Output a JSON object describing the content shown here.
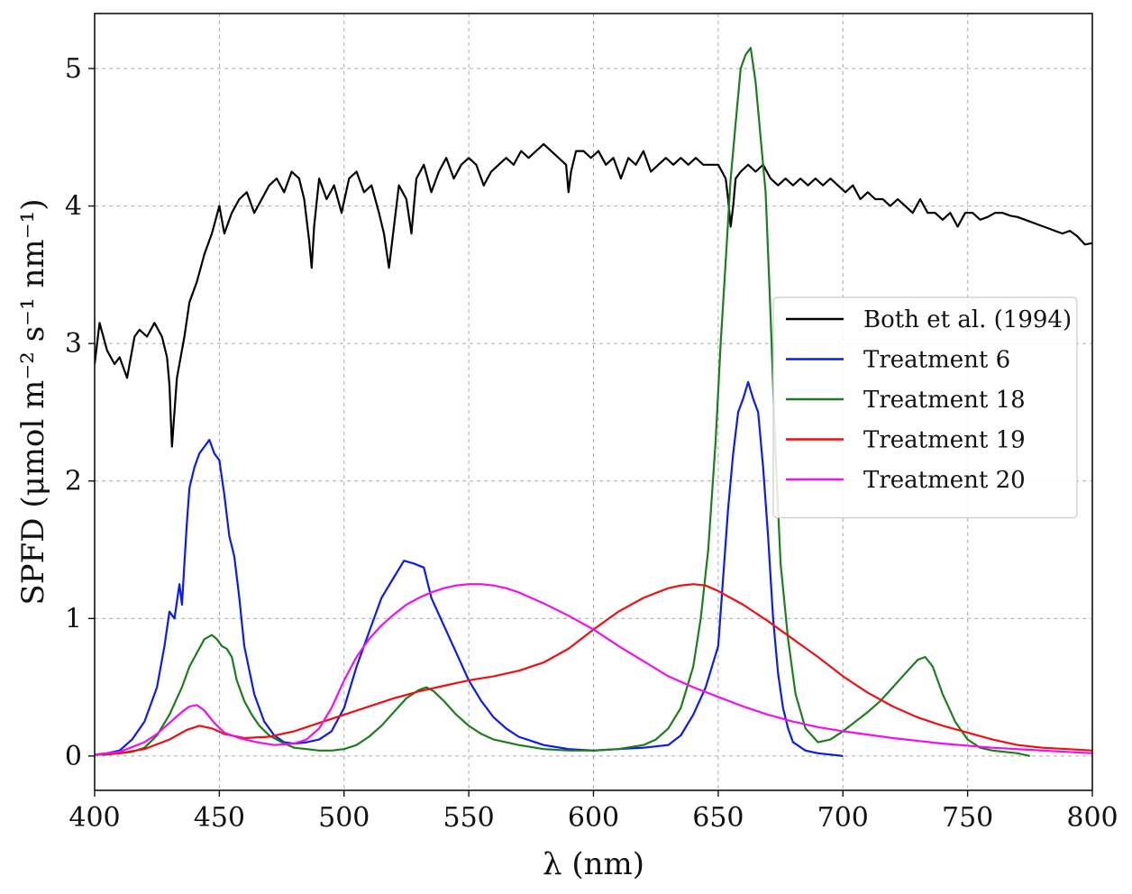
{
  "chart_data": {
    "type": "line",
    "title": "",
    "xlabel": "λ (nm)",
    "ylabel": "SPFD (μmol m⁻² s⁻¹ nm⁻¹)",
    "xlim": [
      400,
      800
    ],
    "ylim": [
      -0.25,
      5.4
    ],
    "xticks": [
      400,
      450,
      500,
      550,
      600,
      650,
      700,
      750,
      800
    ],
    "yticks": [
      0,
      1,
      2,
      3,
      4,
      5
    ],
    "grid": true,
    "legend_position": "center-right",
    "series": [
      {
        "name": "Both et al. (1994)",
        "color": "#000000",
        "x": [
          400,
          402,
          405,
          408,
          410,
          413,
          416,
          418,
          421,
          424,
          427,
          429,
          430,
          431,
          433,
          436,
          438,
          441,
          444,
          447,
          450,
          452,
          455,
          458,
          461,
          464,
          467,
          470,
          473,
          476,
          479,
          482,
          484,
          486,
          487,
          488,
          490,
          493,
          496,
          499,
          502,
          505,
          508,
          511,
          514,
          516,
          518,
          520,
          522,
          525,
          527,
          529,
          532,
          535,
          538,
          541,
          544,
          547,
          550,
          553,
          556,
          559,
          562,
          565,
          568,
          571,
          574,
          577,
          580,
          583,
          586,
          589,
          590,
          591,
          593,
          596,
          599,
          602,
          605,
          608,
          611,
          614,
          617,
          620,
          623,
          626,
          629,
          632,
          635,
          638,
          641,
          644,
          647,
          650,
          653,
          654,
          655,
          656,
          657,
          659,
          662,
          665,
          668,
          671,
          674,
          677,
          680,
          683,
          686,
          689,
          692,
          695,
          698,
          701,
          704,
          707,
          710,
          713,
          716,
          719,
          722,
          725,
          728,
          731,
          734,
          737,
          740,
          743,
          746,
          749,
          752,
          755,
          758,
          761,
          764,
          767,
          770,
          773,
          776,
          779,
          782,
          785,
          788,
          791,
          794,
          797,
          800
        ],
        "values": [
          2.85,
          3.15,
          2.95,
          2.85,
          2.9,
          2.75,
          3.05,
          3.1,
          3.05,
          3.15,
          3.05,
          2.9,
          2.7,
          2.25,
          2.75,
          3.05,
          3.3,
          3.45,
          3.65,
          3.8,
          4.0,
          3.8,
          3.95,
          4.05,
          4.1,
          3.95,
          4.05,
          4.15,
          4.2,
          4.1,
          4.25,
          4.2,
          4.05,
          3.75,
          3.55,
          3.85,
          4.2,
          4.05,
          4.15,
          3.95,
          4.2,
          4.25,
          4.1,
          4.15,
          3.95,
          3.8,
          3.55,
          3.85,
          4.15,
          4.05,
          3.8,
          4.2,
          4.3,
          4.1,
          4.25,
          4.35,
          4.2,
          4.3,
          4.35,
          4.3,
          4.15,
          4.25,
          4.3,
          4.35,
          4.3,
          4.4,
          4.35,
          4.4,
          4.45,
          4.4,
          4.35,
          4.3,
          4.1,
          4.25,
          4.4,
          4.4,
          4.35,
          4.4,
          4.3,
          4.35,
          4.2,
          4.35,
          4.3,
          4.4,
          4.25,
          4.3,
          4.35,
          4.3,
          4.35,
          4.3,
          4.35,
          4.3,
          4.3,
          4.3,
          4.2,
          4.05,
          3.85,
          4.0,
          4.2,
          4.25,
          4.3,
          4.25,
          4.3,
          4.2,
          4.15,
          4.2,
          4.15,
          4.2,
          4.15,
          4.2,
          4.15,
          4.2,
          4.15,
          4.1,
          4.15,
          4.05,
          4.1,
          4.05,
          4.05,
          4.0,
          4.05,
          4.0,
          3.95,
          4.05,
          3.95,
          3.95,
          3.9,
          3.95,
          3.85,
          3.95,
          3.95,
          3.9,
          3.92,
          3.95,
          3.95,
          3.93,
          3.92,
          3.9,
          3.88,
          3.86,
          3.84,
          3.82,
          3.8,
          3.82,
          3.78,
          3.72,
          3.73
        ]
      },
      {
        "name": "Treatment 6",
        "color": "#0b1bf0",
        "x": [
          400,
          405,
          410,
          415,
          420,
          425,
          428,
          430,
          432,
          434,
          435,
          436,
          437,
          438,
          440,
          442,
          444,
          446,
          448,
          450,
          452,
          454,
          456,
          458,
          460,
          464,
          468,
          472,
          476,
          480,
          485,
          490,
          495,
          500,
          505,
          510,
          515,
          520,
          524,
          528,
          532,
          535,
          540,
          545,
          550,
          555,
          560,
          565,
          570,
          580,
          590,
          600,
          610,
          620,
          630,
          635,
          640,
          645,
          650,
          652,
          654,
          656,
          658,
          660,
          662,
          664,
          666,
          668,
          670,
          672,
          674,
          676,
          678,
          680,
          685,
          690,
          695,
          700
        ],
        "values": [
          0.01,
          0.02,
          0.04,
          0.12,
          0.25,
          0.5,
          0.8,
          1.05,
          1.0,
          1.25,
          1.1,
          1.4,
          1.7,
          1.95,
          2.1,
          2.2,
          2.25,
          2.3,
          2.2,
          2.15,
          1.9,
          1.6,
          1.45,
          1.15,
          0.8,
          0.45,
          0.25,
          0.15,
          0.1,
          0.09,
          0.1,
          0.12,
          0.18,
          0.35,
          0.65,
          0.9,
          1.15,
          1.3,
          1.42,
          1.4,
          1.37,
          1.15,
          0.95,
          0.75,
          0.55,
          0.4,
          0.28,
          0.2,
          0.14,
          0.08,
          0.05,
          0.04,
          0.05,
          0.06,
          0.08,
          0.15,
          0.3,
          0.5,
          0.8,
          1.3,
          1.8,
          2.2,
          2.5,
          2.6,
          2.72,
          2.6,
          2.5,
          2.1,
          1.6,
          1.0,
          0.6,
          0.35,
          0.2,
          0.1,
          0.04,
          0.02,
          0.01,
          0.0
        ]
      },
      {
        "name": "Treatment 18",
        "color": "#1c7d1c",
        "x": [
          400,
          405,
          410,
          415,
          420,
          425,
          430,
          435,
          438,
          441,
          444,
          447,
          449,
          451,
          453,
          455,
          457,
          460,
          463,
          466,
          470,
          475,
          480,
          485,
          490,
          495,
          500,
          505,
          510,
          515,
          520,
          525,
          530,
          533,
          536,
          540,
          545,
          550,
          555,
          560,
          570,
          580,
          590,
          600,
          610,
          620,
          625,
          630,
          635,
          640,
          643,
          646,
          649,
          651,
          653,
          655,
          657,
          659,
          661,
          663,
          665,
          667,
          669,
          671,
          673,
          675,
          678,
          681,
          685,
          690,
          695,
          700,
          705,
          710,
          715,
          720,
          725,
          730,
          733,
          736,
          740,
          745,
          750,
          755,
          760,
          765,
          770,
          775
        ],
        "values": [
          0.01,
          0.01,
          0.02,
          0.03,
          0.06,
          0.15,
          0.3,
          0.5,
          0.65,
          0.75,
          0.85,
          0.88,
          0.85,
          0.8,
          0.78,
          0.72,
          0.55,
          0.4,
          0.3,
          0.22,
          0.15,
          0.1,
          0.06,
          0.05,
          0.04,
          0.04,
          0.05,
          0.08,
          0.14,
          0.22,
          0.32,
          0.42,
          0.48,
          0.5,
          0.47,
          0.4,
          0.3,
          0.22,
          0.16,
          0.12,
          0.08,
          0.05,
          0.04,
          0.04,
          0.05,
          0.08,
          0.12,
          0.2,
          0.35,
          0.65,
          1.0,
          1.5,
          2.3,
          3.0,
          3.6,
          4.2,
          4.6,
          5.0,
          5.1,
          5.15,
          4.9,
          4.5,
          4.1,
          3.2,
          2.2,
          1.4,
          0.85,
          0.45,
          0.2,
          0.1,
          0.12,
          0.18,
          0.25,
          0.32,
          0.4,
          0.5,
          0.6,
          0.7,
          0.72,
          0.65,
          0.45,
          0.25,
          0.12,
          0.06,
          0.04,
          0.03,
          0.02,
          0.0
        ]
      },
      {
        "name": "Treatment 19",
        "color": "#ee1010",
        "x": [
          400,
          410,
          420,
          430,
          437,
          442,
          447,
          452,
          460,
          470,
          480,
          490,
          500,
          510,
          520,
          530,
          540,
          550,
          560,
          570,
          580,
          590,
          600,
          610,
          620,
          630,
          635,
          640,
          645,
          650,
          660,
          670,
          680,
          690,
          700,
          710,
          720,
          730,
          740,
          750,
          760,
          770,
          780,
          790,
          800
        ],
        "values": [
          0.01,
          0.02,
          0.05,
          0.12,
          0.19,
          0.22,
          0.2,
          0.16,
          0.13,
          0.14,
          0.18,
          0.24,
          0.3,
          0.36,
          0.42,
          0.47,
          0.51,
          0.55,
          0.58,
          0.62,
          0.68,
          0.78,
          0.92,
          1.05,
          1.15,
          1.22,
          1.24,
          1.25,
          1.24,
          1.2,
          1.1,
          0.98,
          0.85,
          0.72,
          0.58,
          0.46,
          0.36,
          0.28,
          0.22,
          0.17,
          0.12,
          0.08,
          0.06,
          0.05,
          0.04
        ]
      },
      {
        "name": "Treatment 20",
        "color": "#ee10ee",
        "x": [
          400,
          410,
          420,
          425,
          430,
          435,
          438,
          441,
          444,
          448,
          452,
          458,
          465,
          472,
          480,
          485,
          490,
          495,
          500,
          505,
          510,
          515,
          520,
          525,
          530,
          535,
          540,
          545,
          550,
          555,
          560,
          565,
          570,
          575,
          580,
          590,
          600,
          610,
          620,
          630,
          640,
          650,
          660,
          670,
          680,
          690,
          700,
          720,
          740,
          760,
          780,
          800
        ],
        "values": [
          0.01,
          0.03,
          0.1,
          0.16,
          0.24,
          0.32,
          0.36,
          0.37,
          0.33,
          0.24,
          0.17,
          0.13,
          0.1,
          0.08,
          0.09,
          0.12,
          0.2,
          0.35,
          0.55,
          0.72,
          0.85,
          0.95,
          1.03,
          1.1,
          1.15,
          1.19,
          1.22,
          1.24,
          1.25,
          1.25,
          1.24,
          1.22,
          1.19,
          1.15,
          1.11,
          1.02,
          0.92,
          0.8,
          0.69,
          0.58,
          0.5,
          0.43,
          0.36,
          0.3,
          0.25,
          0.21,
          0.18,
          0.13,
          0.09,
          0.06,
          0.04,
          0.02
        ]
      }
    ]
  }
}
